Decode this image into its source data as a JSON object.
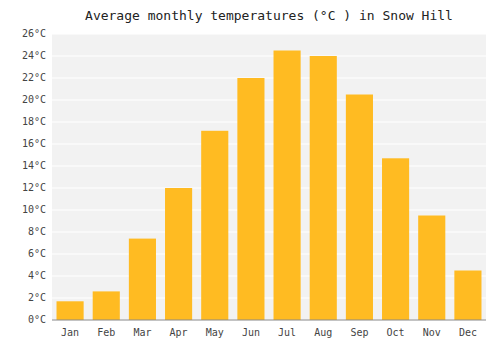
{
  "chart_data": {
    "type": "bar",
    "title": "Average monthly temperatures (°C ) in Snow Hill",
    "categories": [
      "Jan",
      "Feb",
      "Mar",
      "Apr",
      "May",
      "Jun",
      "Jul",
      "Aug",
      "Sep",
      "Oct",
      "Nov",
      "Dec"
    ],
    "values": [
      1.7,
      2.6,
      7.4,
      12.0,
      17.2,
      22.0,
      24.5,
      24.0,
      20.5,
      14.7,
      9.5,
      4.5
    ],
    "color": "#FFBB22",
    "ylim": [
      0,
      26
    ],
    "yticks": [
      {
        "value": 0,
        "label": "0°C"
      },
      {
        "value": 2,
        "label": "2°C"
      },
      {
        "value": 4,
        "label": "4°C"
      },
      {
        "value": 6,
        "label": "6°C"
      },
      {
        "value": 8,
        "label": "8°C"
      },
      {
        "value": 10,
        "label": "10°C"
      },
      {
        "value": 12,
        "label": "12°C"
      },
      {
        "value": 14,
        "label": "14°C"
      },
      {
        "value": 16,
        "label": "16°C"
      },
      {
        "value": 18,
        "label": "18°C"
      },
      {
        "value": 20,
        "label": "20°C"
      },
      {
        "value": 22,
        "label": "22°C"
      },
      {
        "value": 24,
        "label": "24°C"
      },
      {
        "value": 26,
        "label": "26°C"
      }
    ],
    "grid": true
  }
}
